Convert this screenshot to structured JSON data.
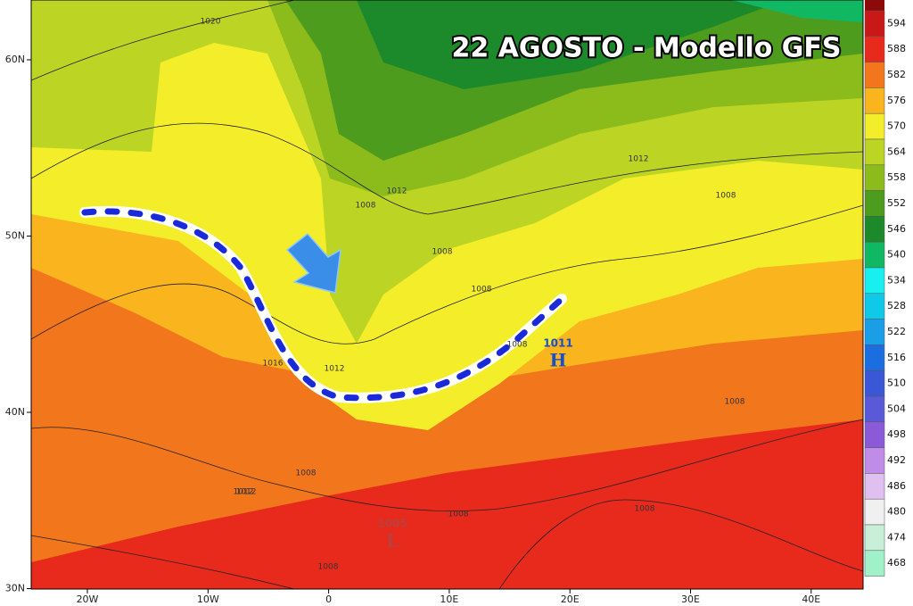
{
  "title": "22 AGOSTO - Modello GFS",
  "lat_labels": [
    "60N",
    "50N",
    "40N",
    "30N"
  ],
  "lon_labels": [
    "20W",
    "10W",
    "0",
    "10E",
    "20E",
    "30E",
    "40E"
  ],
  "colorbar": [
    {
      "label": "594",
      "color": "#c81818"
    },
    {
      "label": "588",
      "color": "#e82a1c"
    },
    {
      "label": "582",
      "color": "#f2761c"
    },
    {
      "label": "576",
      "color": "#f9b41e"
    },
    {
      "label": "570",
      "color": "#f4ee2a"
    },
    {
      "label": "564",
      "color": "#bcd424"
    },
    {
      "label": "558",
      "color": "#8cbc1c"
    },
    {
      "label": "552",
      "color": "#4e9c1e"
    },
    {
      "label": "546",
      "color": "#1c8a2a"
    },
    {
      "label": "540",
      "color": "#10b864"
    },
    {
      "label": "534",
      "color": "#18f0f0"
    },
    {
      "label": "528",
      "color": "#10c8e8"
    },
    {
      "label": "522",
      "color": "#1a9ee6"
    },
    {
      "label": "516",
      "color": "#1a6ee0"
    },
    {
      "label": "510",
      "color": "#3a58d6"
    },
    {
      "label": "504",
      "color": "#5a5ad8"
    },
    {
      "label": "498",
      "color": "#8a5ad8"
    },
    {
      "label": "492",
      "color": "#c08ce8"
    },
    {
      "label": "486",
      "color": "#e0c0f0"
    },
    {
      "label": "480",
      "color": "#f0f0f0"
    },
    {
      "label": "474",
      "color": "#c8f0d8"
    },
    {
      "label": "468",
      "color": "#a0f0c8"
    }
  ],
  "isobar_labels": [
    "1020",
    "1012",
    "1012",
    "1008",
    "1008",
    "1008",
    "1008",
    "1012",
    "1016",
    "1012",
    "1008",
    "1008",
    "1008",
    "1012",
    "1008",
    "1008",
    "1008"
  ],
  "pressure_centers": [
    {
      "value": "1011",
      "letter": "H",
      "color": "#1a4ec8"
    },
    {
      "value": "1005",
      "letter": "L",
      "color": "#b84040"
    }
  ]
}
